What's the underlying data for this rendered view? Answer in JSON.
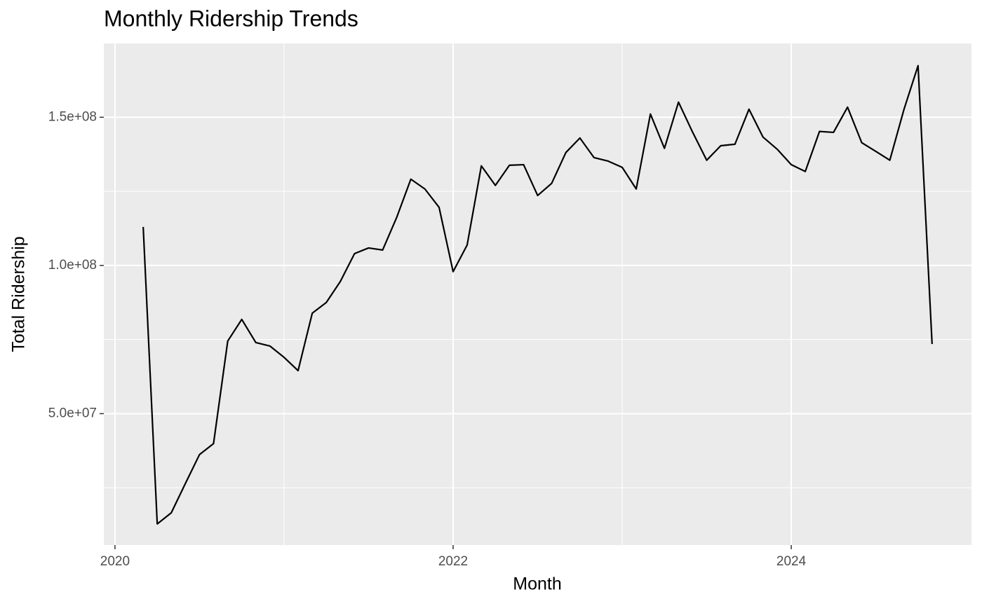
{
  "chart_data": {
    "type": "line",
    "title": "Monthly Ridership Trends",
    "x_label": "Month",
    "y_label": "Total Ridership",
    "x": [
      2020.167,
      2020.25,
      2020.333,
      2020.417,
      2020.5,
      2020.583,
      2020.667,
      2020.75,
      2020.833,
      2020.917,
      2021,
      2021.083,
      2021.167,
      2021.25,
      2021.333,
      2021.417,
      2021.5,
      2021.583,
      2021.667,
      2021.75,
      2021.833,
      2021.917,
      2022,
      2022.083,
      2022.167,
      2022.25,
      2022.333,
      2022.417,
      2022.5,
      2022.583,
      2022.667,
      2022.75,
      2022.833,
      2022.917,
      2023,
      2023.083,
      2023.167,
      2023.25,
      2023.333,
      2023.417,
      2023.5,
      2023.583,
      2023.667,
      2023.75,
      2023.833,
      2023.917,
      2024,
      2024.083,
      2024.167,
      2024.25,
      2024.333,
      2024.417,
      2024.5,
      2024.583,
      2024.667,
      2024.75,
      2024.833
    ],
    "values": [
      113000000,
      12800000,
      16550000,
      26500000,
      36200000,
      39900000,
      74500000,
      81800000,
      74000000,
      72800000,
      69000000,
      64500000,
      83900000,
      87500000,
      94600000,
      104000000,
      105900000,
      105200000,
      116300000,
      129100000,
      125800000,
      119600000,
      97900000,
      106900000,
      133600000,
      127000000,
      133800000,
      134000000,
      123600000,
      127700000,
      138100000,
      143000000,
      136400000,
      135200000,
      133100000,
      125800000,
      151100000,
      139500000,
      155100000,
      144900000,
      135500000,
      140400000,
      140900000,
      152700000,
      143300000,
      139200000,
      134000000,
      131700000,
      145200000,
      144900000,
      153400000,
      141400000,
      138500000,
      135500000,
      152700000,
      167400000,
      73500000
    ],
    "color": "#000000",
    "xlim": [
      2019.934,
      2025.066
    ],
    "xticks": [
      2020,
      2022,
      2024
    ],
    "xminor": [
      2021,
      2023
    ],
    "ylim": [
      5670000,
      174900000
    ],
    "yticks": [
      {
        "value": 50000000,
        "label": "5.0e+07"
      },
      {
        "value": 100000000,
        "label": "1.0e+08"
      },
      {
        "value": 150000000,
        "label": "1.5e+08"
      }
    ],
    "yminor": [
      25000000,
      75000000,
      125000000
    ],
    "grid": true
  }
}
